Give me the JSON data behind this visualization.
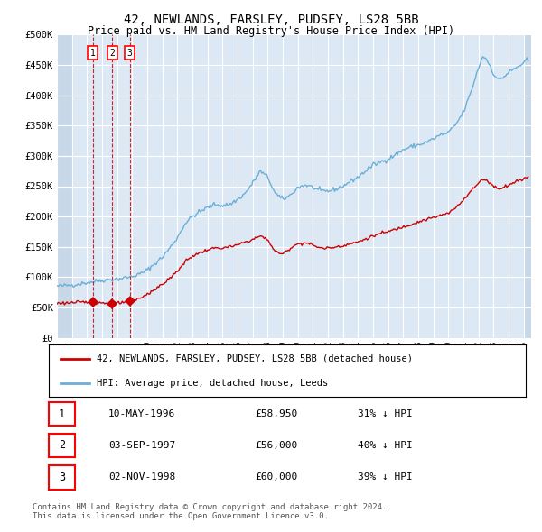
{
  "title1": "42, NEWLANDS, FARSLEY, PUDSEY, LS28 5BB",
  "title2": "Price paid vs. HM Land Registry's House Price Index (HPI)",
  "legend1": "42, NEWLANDS, FARSLEY, PUDSEY, LS28 5BB (detached house)",
  "legend2": "HPI: Average price, detached house, Leeds",
  "footer": "Contains HM Land Registry data © Crown copyright and database right 2024.\nThis data is licensed under the Open Government Licence v3.0.",
  "transactions": [
    {
      "num": 1,
      "date": "10-MAY-1996",
      "year": 1996.37,
      "price": 58950,
      "pct": "31% ↓ HPI"
    },
    {
      "num": 2,
      "date": "03-SEP-1997",
      "year": 1997.67,
      "price": 56000,
      "pct": "40% ↓ HPI"
    },
    {
      "num": 3,
      "date": "02-NOV-1998",
      "year": 1998.84,
      "price": 60000,
      "pct": "39% ↓ HPI"
    }
  ],
  "hpi_color": "#6baed6",
  "price_color": "#cc0000",
  "dashed_color": "#cc0000",
  "bg_chart": "#dce9f5",
  "bg_hatch": "#c8d8e8",
  "grid_color": "#ffffff",
  "ylim": [
    0,
    500000
  ],
  "yticks": [
    0,
    50000,
    100000,
    150000,
    200000,
    250000,
    300000,
    350000,
    400000,
    450000,
    500000
  ],
  "xlim_start": 1994.0,
  "xlim_end": 2025.5
}
